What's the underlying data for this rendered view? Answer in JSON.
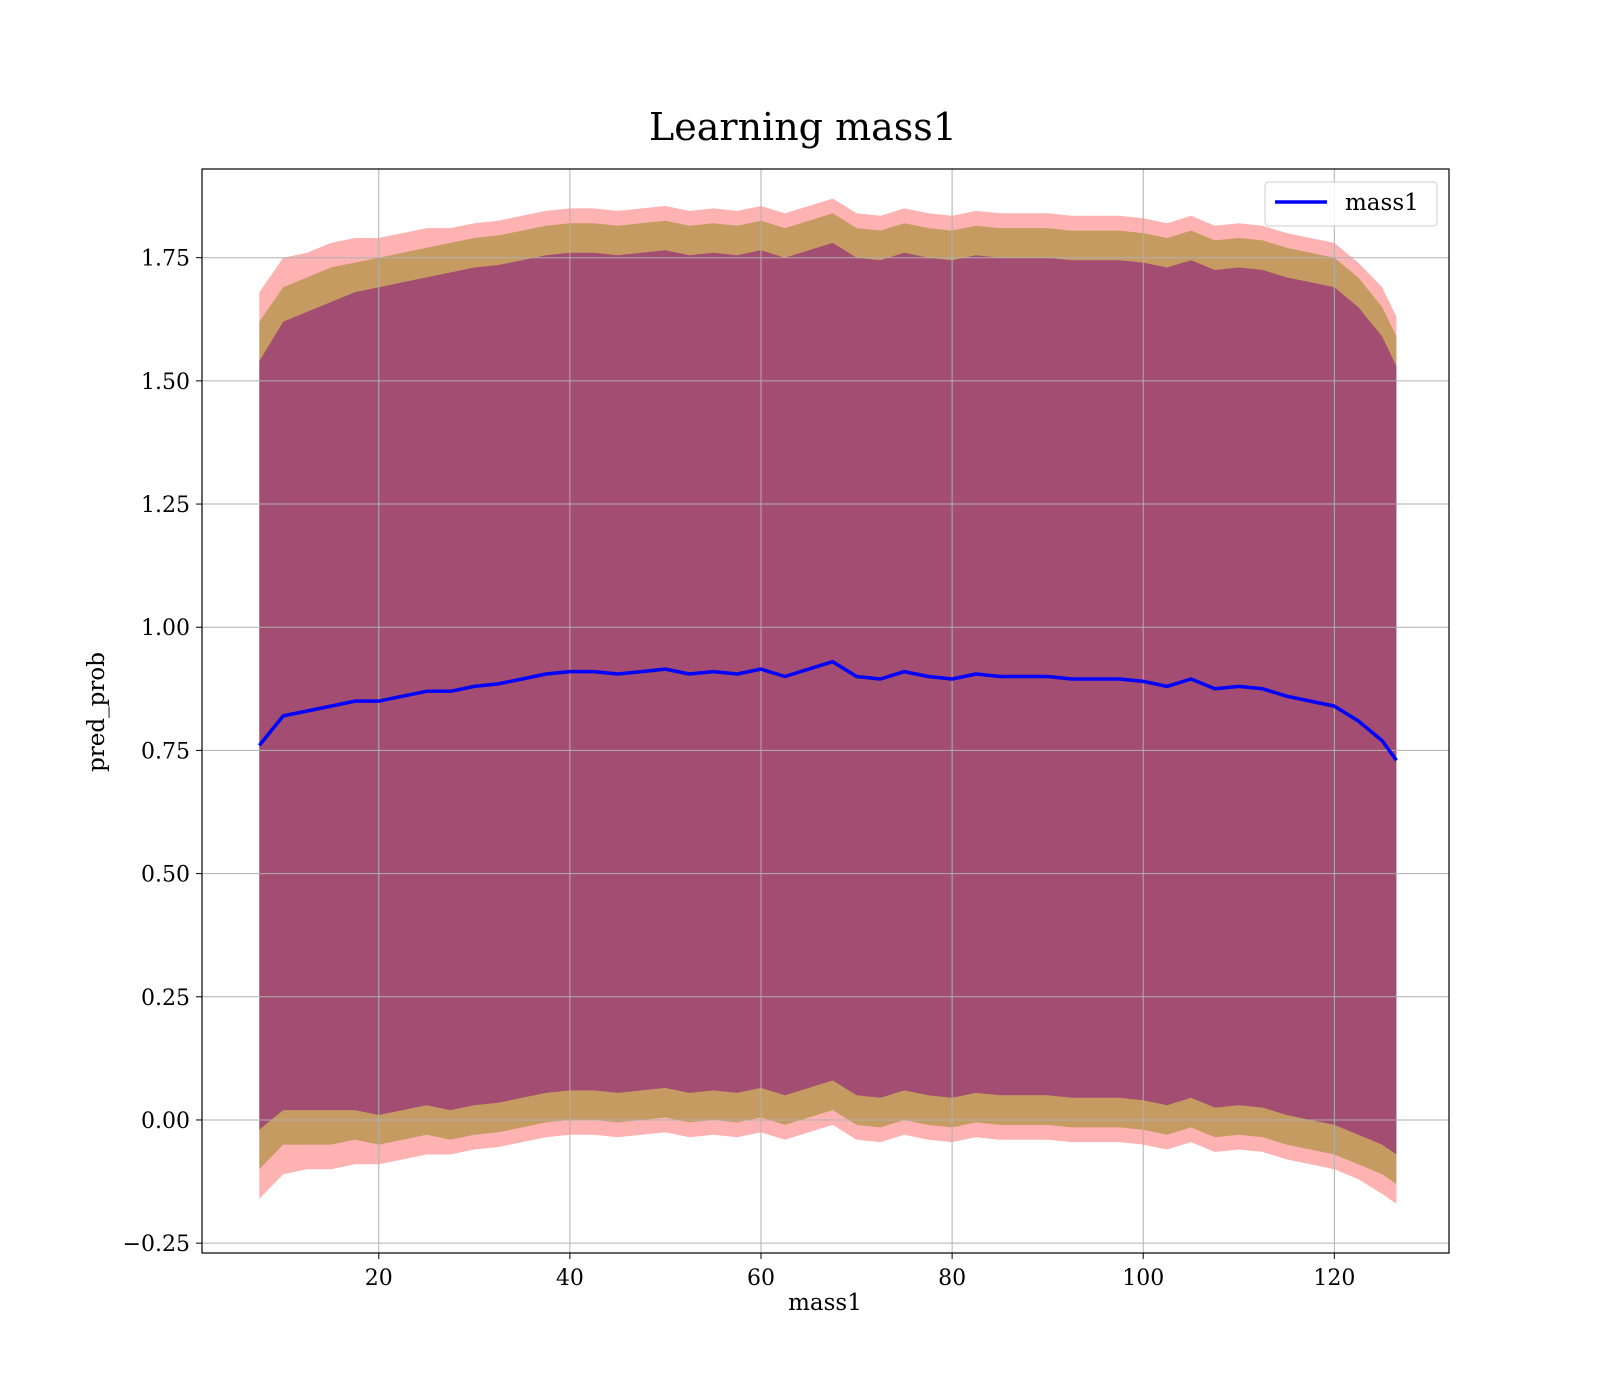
{
  "chart_data": {
    "type": "line",
    "title": "Learning mass1",
    "xlabel": "mass1",
    "ylabel": "pred_prob",
    "xlim": [
      1.5,
      132
    ],
    "ylim": [
      -0.27,
      1.93
    ],
    "xticks": [
      20,
      40,
      60,
      80,
      100,
      120
    ],
    "yticks": [
      -0.25,
      0.0,
      0.25,
      0.5,
      0.75,
      1.0,
      1.25,
      1.5,
      1.75
    ],
    "ytick_labels": [
      "−0.25",
      "0.00",
      "0.25",
      "0.50",
      "0.75",
      "1.00",
      "1.25",
      "1.50",
      "1.75"
    ],
    "xtick_labels": [
      "20",
      "40",
      "60",
      "80",
      "100",
      "120"
    ],
    "grid": true,
    "legend": {
      "position": "top-right",
      "entries": [
        "mass1"
      ]
    },
    "colors": {
      "line": "#0000ff",
      "band_outer": "#ff0000",
      "band_mid": "#7f7f00",
      "band_inner": "#7f007f"
    },
    "series": [
      {
        "name": "mass1",
        "x": [
          7.5,
          10,
          12.5,
          15,
          17.5,
          20,
          22.5,
          25,
          27.5,
          30,
          32.5,
          35,
          37.5,
          40,
          42.5,
          45,
          47.5,
          50,
          52.5,
          55,
          57.5,
          60,
          62.5,
          65,
          67.5,
          70,
          72.5,
          75,
          77.5,
          80,
          82.5,
          85,
          87.5,
          90,
          92.5,
          95,
          97.5,
          100,
          102.5,
          105,
          107.5,
          110,
          112.5,
          115,
          117.5,
          120,
          122.5,
          125,
          126.5
        ],
        "y": [
          0.76,
          0.82,
          0.83,
          0.84,
          0.85,
          0.85,
          0.86,
          0.87,
          0.87,
          0.88,
          0.885,
          0.895,
          0.905,
          0.91,
          0.91,
          0.905,
          0.91,
          0.915,
          0.905,
          0.91,
          0.905,
          0.915,
          0.9,
          0.915,
          0.93,
          0.9,
          0.895,
          0.91,
          0.9,
          0.895,
          0.905,
          0.9,
          0.9,
          0.9,
          0.895,
          0.895,
          0.895,
          0.89,
          0.88,
          0.895,
          0.875,
          0.88,
          0.875,
          0.86,
          0.85,
          0.84,
          0.81,
          0.77,
          0.73
        ],
        "std_1": [
          0.78,
          0.8,
          0.81,
          0.82,
          0.83,
          0.84,
          0.84,
          0.84,
          0.85,
          0.85,
          0.85,
          0.85,
          0.85,
          0.85,
          0.85,
          0.85,
          0.85,
          0.85,
          0.85,
          0.85,
          0.85,
          0.85,
          0.85,
          0.85,
          0.85,
          0.85,
          0.85,
          0.85,
          0.85,
          0.85,
          0.85,
          0.85,
          0.85,
          0.85,
          0.85,
          0.85,
          0.85,
          0.85,
          0.85,
          0.85,
          0.85,
          0.85,
          0.85,
          0.85,
          0.85,
          0.85,
          0.84,
          0.82,
          0.8
        ],
        "std_2": [
          0.86,
          0.87,
          0.88,
          0.89,
          0.89,
          0.9,
          0.9,
          0.9,
          0.91,
          0.91,
          0.91,
          0.91,
          0.91,
          0.91,
          0.91,
          0.91,
          0.91,
          0.91,
          0.91,
          0.91,
          0.91,
          0.91,
          0.91,
          0.91,
          0.91,
          0.91,
          0.91,
          0.91,
          0.91,
          0.91,
          0.91,
          0.91,
          0.91,
          0.91,
          0.91,
          0.91,
          0.91,
          0.91,
          0.91,
          0.91,
          0.91,
          0.91,
          0.91,
          0.91,
          0.91,
          0.91,
          0.9,
          0.88,
          0.86
        ],
        "std_3": [
          0.92,
          0.93,
          0.93,
          0.94,
          0.94,
          0.94,
          0.94,
          0.94,
          0.94,
          0.94,
          0.94,
          0.94,
          0.94,
          0.94,
          0.94,
          0.94,
          0.94,
          0.94,
          0.94,
          0.94,
          0.94,
          0.94,
          0.94,
          0.94,
          0.94,
          0.94,
          0.94,
          0.94,
          0.94,
          0.94,
          0.94,
          0.94,
          0.94,
          0.94,
          0.94,
          0.94,
          0.94,
          0.94,
          0.94,
          0.94,
          0.94,
          0.94,
          0.94,
          0.94,
          0.94,
          0.94,
          0.93,
          0.92,
          0.9
        ]
      }
    ]
  }
}
